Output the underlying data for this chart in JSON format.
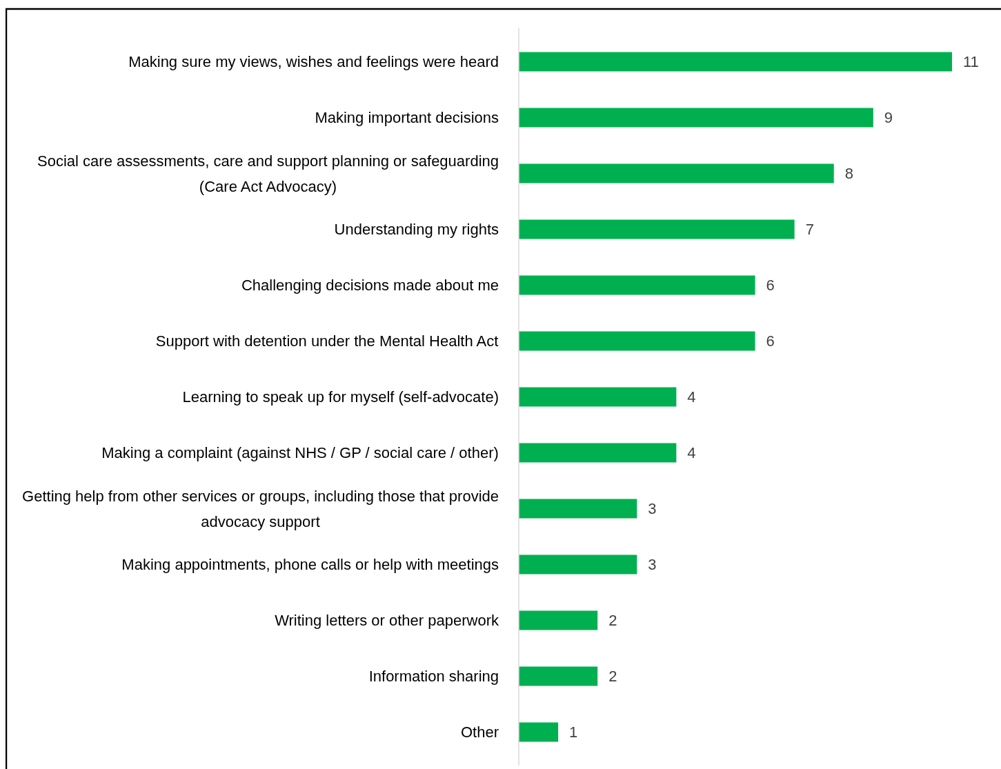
{
  "chart_data": {
    "type": "bar",
    "orientation": "horizontal",
    "data_labels": true,
    "color": "#00b050",
    "categories": [
      "Making sure my views, wishes and feelings were heard",
      "Making important decisions",
      "Social care assessments, care and support planning or safeguarding (Care Act Advocacy)",
      "Understanding my rights",
      "Challenging decisions made about me",
      "Support with detention under the Mental Health Act",
      "Learning to speak up for myself (self-advocate)",
      "Making a complaint (against NHS / GP / social care / other)",
      "Getting help from other services or groups, including those that provide advocacy support",
      "Making appointments, phone calls or help with meetings",
      "Writing letters or other paperwork",
      "Information sharing",
      "Other"
    ],
    "values": [
      11,
      9,
      8,
      7,
      6,
      6,
      4,
      4,
      3,
      3,
      2,
      2,
      1
    ]
  }
}
